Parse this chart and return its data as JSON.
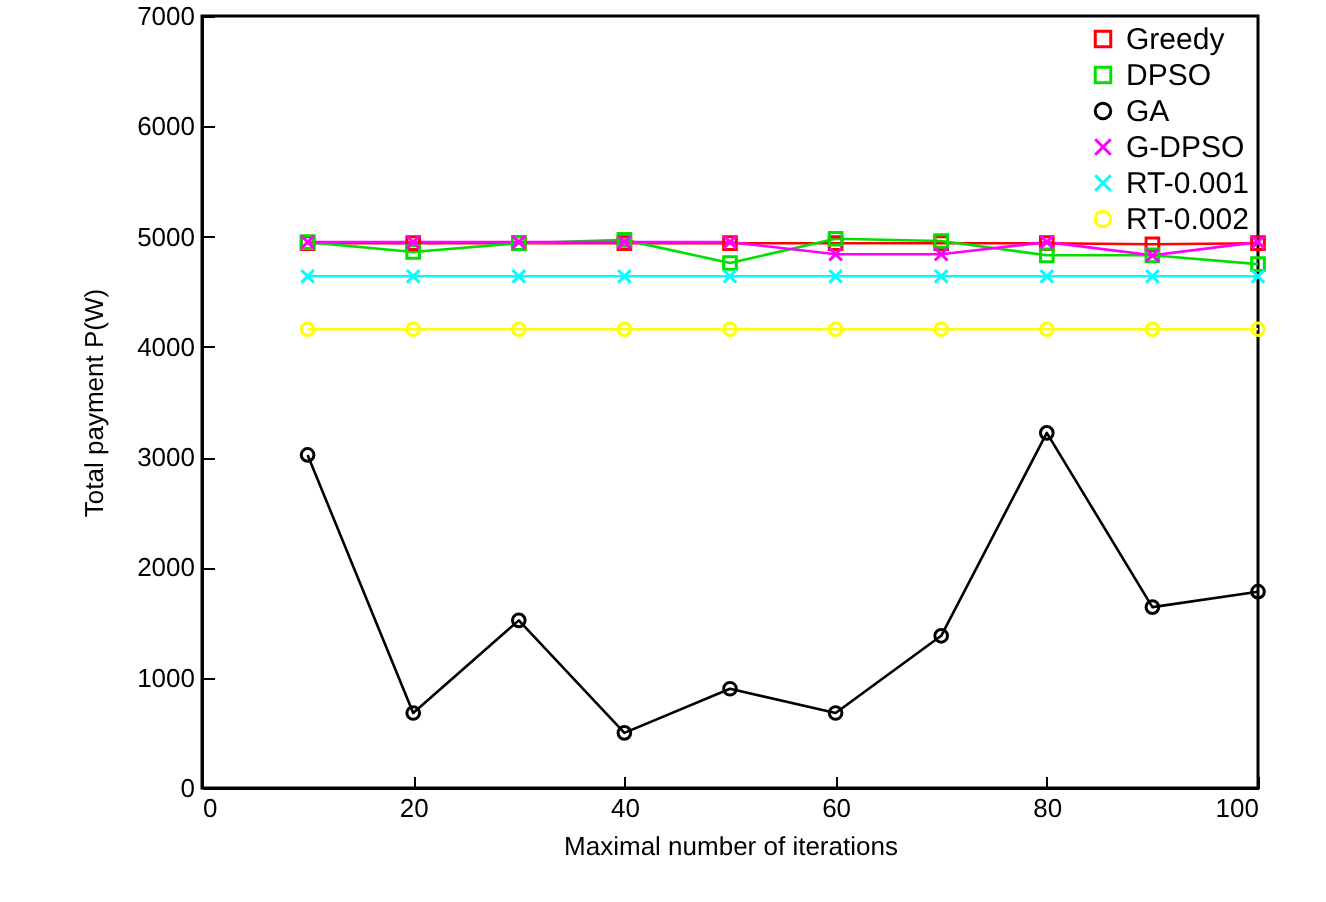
{
  "chart_data": {
    "type": "line",
    "xlabel": "Maximal number of iterations",
    "ylabel": "Total payment P(W)",
    "x": [
      10,
      20,
      30,
      40,
      50,
      60,
      70,
      80,
      90,
      100
    ],
    "series": [
      {
        "name": "Greedy",
        "color": "#ff0000",
        "marker": "square",
        "values": [
          4940,
          4940,
          4940,
          4940,
          4940,
          4940,
          4940,
          4940,
          4930,
          4940
        ]
      },
      {
        "name": "DPSO",
        "color": "#00e000",
        "marker": "square",
        "values": [
          4950,
          4860,
          4940,
          4970,
          4760,
          4980,
          4960,
          4830,
          4830,
          4750
        ]
      },
      {
        "name": "GA",
        "color": "#000000",
        "marker": "circle",
        "values": [
          3020,
          680,
          1520,
          500,
          900,
          680,
          1380,
          3220,
          1640,
          1780
        ]
      },
      {
        "name": "G-DPSO",
        "color": "#ff00ff",
        "marker": "cross",
        "values": [
          4950,
          4950,
          4950,
          4950,
          4950,
          4840,
          4840,
          4950,
          4830,
          4950
        ]
      },
      {
        "name": "RT-0.001",
        "color": "#00ffff",
        "marker": "cross",
        "values": [
          4640,
          4640,
          4640,
          4640,
          4640,
          4640,
          4640,
          4640,
          4640,
          4640
        ]
      },
      {
        "name": "RT-0.002",
        "color": "#ffff00",
        "marker": "circle",
        "values": [
          4160,
          4160,
          4160,
          4160,
          4160,
          4160,
          4160,
          4160,
          4160,
          4160
        ]
      }
    ],
    "xlim": [
      0,
      100
    ],
    "xticks": [
      0,
      20,
      40,
      60,
      80,
      100
    ],
    "ylim": [
      0,
      7000
    ],
    "yticks": [
      0,
      1000,
      2000,
      3000,
      4000,
      5000,
      6000,
      7000
    ],
    "grid": false,
    "legend": "top right"
  }
}
